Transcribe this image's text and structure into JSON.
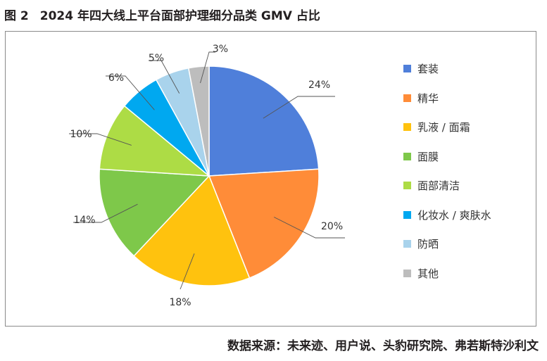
{
  "figure": {
    "number": "图 2",
    "title": "2024 年四大线上平台面部护理细分品类 GMV 占比"
  },
  "source_text": "数据来源：未来迹、用户说、头豹研究院、弗若斯特沙利文",
  "chart_data": {
    "type": "pie",
    "title": "2024 年四大线上平台面部护理细分品类 GMV 占比",
    "value_unit": "%",
    "start": "12 o'clock, clockwise",
    "legend_placement": "right",
    "slices": [
      {
        "label": "套装",
        "value": 24,
        "display": "24%",
        "color": "#4f7fda"
      },
      {
        "label": "精华",
        "value": 20,
        "display": "20%",
        "color": "#ff8c38"
      },
      {
        "label": "乳液 / 面霜",
        "value": 18,
        "display": "18%",
        "color": "#ffc20e"
      },
      {
        "label": "面膜",
        "value": 14,
        "display": "14%",
        "color": "#7ec84a"
      },
      {
        "label": "面部清洁",
        "value": 10,
        "display": "10%",
        "color": "#addc45"
      },
      {
        "label": "化妆水 / 爽肤水",
        "value": 6,
        "display": "6%",
        "color": "#00a8f0"
      },
      {
        "label": "防晒",
        "value": 5,
        "display": "5%",
        "color": "#a9d3ec"
      },
      {
        "label": "其他",
        "value": 3,
        "display": "3%",
        "color": "#bdbdbd"
      }
    ]
  }
}
